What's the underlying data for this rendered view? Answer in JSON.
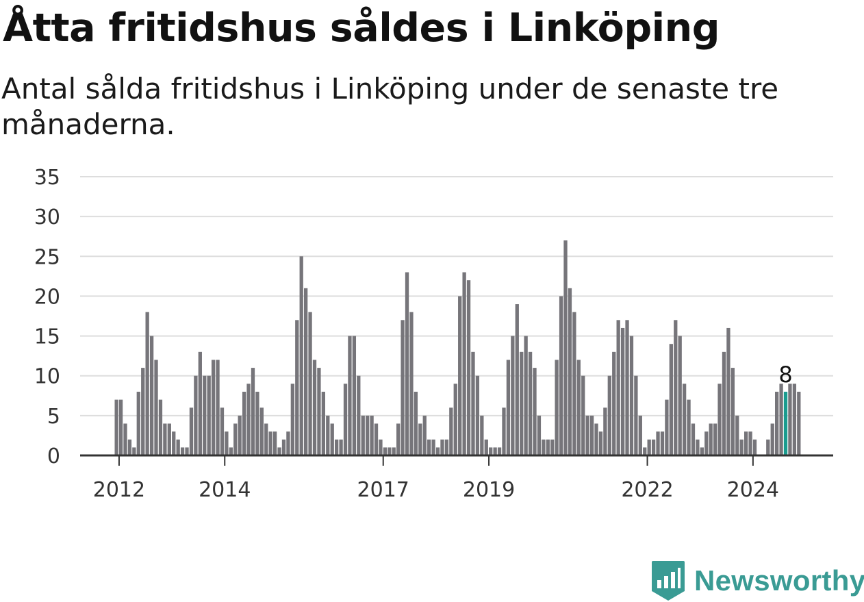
{
  "title": "Åtta fritidshus såldes i Linköping",
  "subtitle": "Antal sålda fritidshus i Linköping under de senaste tre månaderna.",
  "brand": {
    "name": "Newsworthy",
    "icon": "newsworthy-logo-icon",
    "color": "#3a9b94"
  },
  "colors": {
    "bar": "#76757a",
    "highlight": "#1a9c8f",
    "grid": "#dddddd",
    "axis": "#333333"
  },
  "chart_data": {
    "type": "bar",
    "title": "Åtta fritidshus såldes i Linköping",
    "subtitle": "Antal sålda fritidshus i Linköping under de senaste tre månaderna.",
    "xlabel": "",
    "ylabel": "",
    "ylim": [
      0,
      35
    ],
    "yticks": [
      0,
      5,
      10,
      15,
      20,
      25,
      30,
      35
    ],
    "xtick_labels": [
      "2012",
      "2014",
      "2017",
      "2019",
      "2022",
      "2024"
    ],
    "xtick_bar_index": [
      1,
      25,
      61,
      85,
      121,
      145
    ],
    "grid": true,
    "legend": "none",
    "annotation": {
      "text": "8",
      "bar_index": 152
    },
    "highlight_bar_index": 152,
    "values": [
      7,
      7,
      4,
      2,
      1,
      8,
      11,
      18,
      15,
      12,
      7,
      4,
      4,
      3,
      2,
      1,
      1,
      6,
      10,
      13,
      10,
      10,
      12,
      12,
      6,
      3,
      1,
      4,
      5,
      8,
      9,
      11,
      8,
      6,
      4,
      3,
      3,
      1,
      2,
      3,
      9,
      17,
      25,
      21,
      18,
      12,
      11,
      8,
      5,
      4,
      2,
      2,
      9,
      15,
      15,
      10,
      5,
      5,
      5,
      4,
      2,
      1,
      1,
      1,
      4,
      17,
      23,
      18,
      8,
      4,
      5,
      2,
      2,
      1,
      2,
      2,
      6,
      9,
      20,
      23,
      22,
      13,
      10,
      5,
      2,
      1,
      1,
      1,
      6,
      12,
      15,
      19,
      13,
      15,
      13,
      11,
      5,
      2,
      2,
      2,
      12,
      20,
      27,
      21,
      18,
      12,
      10,
      5,
      5,
      4,
      3,
      6,
      10,
      13,
      17,
      16,
      17,
      15,
      10,
      5,
      1,
      2,
      2,
      3,
      3,
      7,
      14,
      17,
      15,
      9,
      7,
      4,
      2,
      1,
      3,
      4,
      4,
      9,
      13,
      16,
      11,
      5,
      2,
      3,
      3,
      2,
      0,
      0,
      2,
      4,
      8,
      9,
      8,
      9,
      9,
      8
    ]
  }
}
